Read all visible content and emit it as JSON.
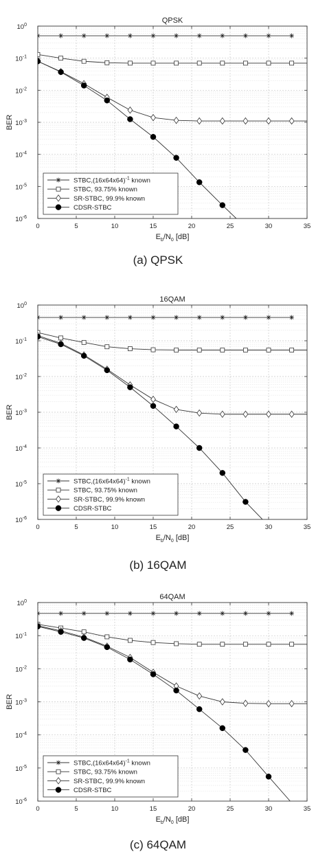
{
  "chart_data": [
    {
      "type": "line",
      "title": "QPSK",
      "caption": "(a) QPSK",
      "xlabel_main": "E",
      "xlabel_sub1": "b",
      "xlabel_mid": "/N",
      "xlabel_sub2": "0",
      "xlabel_unit": " [dB]",
      "ylabel": "BER",
      "xlim": [
        0,
        35
      ],
      "ylim_log10": [
        -6,
        0
      ],
      "y_scale": "log",
      "grid": true,
      "legend_position": "bottom-left",
      "x_ticks": [
        "0",
        "5",
        "10",
        "15",
        "20",
        "25",
        "30",
        "35"
      ],
      "y_tick_base": "10",
      "y_tick_exponents": [
        "0",
        "-1",
        "-2",
        "-3",
        "-4",
        "-5",
        "-6"
      ],
      "series": [
        {
          "name_pre": "STBC,(16x64x64)",
          "name_sup": "-1",
          "name_post": " known",
          "marker": "star",
          "x": [
            0,
            3,
            6,
            9,
            12,
            15,
            18,
            21,
            24,
            27,
            30,
            33
          ],
          "y": [
            0.5,
            0.5,
            0.5,
            0.5,
            0.5,
            0.5,
            0.5,
            0.5,
            0.5,
            0.5,
            0.5,
            0.5
          ]
        },
        {
          "name_pre": "STBC, 93.75% known",
          "marker": "square",
          "x": [
            0,
            3,
            6,
            9,
            12,
            15,
            18,
            21,
            24,
            27,
            30,
            33,
            35
          ],
          "y": [
            0.13,
            0.1,
            0.08,
            0.072,
            0.07,
            0.07,
            0.07,
            0.07,
            0.07,
            0.07,
            0.07,
            0.07,
            0.07
          ]
        },
        {
          "name_pre": "SR-STBC, 99.9% known",
          "marker": "diamond",
          "x": [
            0,
            3,
            6,
            9,
            12,
            15,
            18,
            21,
            24,
            27,
            30,
            33,
            35
          ],
          "y": [
            0.08,
            0.038,
            0.016,
            0.006,
            0.0024,
            0.0014,
            0.00115,
            0.0011,
            0.0011,
            0.0011,
            0.0011,
            0.0011,
            0.0011
          ]
        },
        {
          "name_pre": "CDSR-STBC",
          "marker": "circle",
          "x": [
            0,
            3,
            6,
            9,
            12,
            15,
            18,
            21,
            24,
            25.8
          ],
          "y": [
            0.08,
            0.037,
            0.014,
            0.0048,
            0.00125,
            0.00035,
            7.8e-05,
            1.35e-05,
            2.6e-06,
            1e-06
          ]
        }
      ]
    },
    {
      "type": "line",
      "title": "16QAM",
      "caption": "(b) 16QAM",
      "xlabel_main": "E",
      "xlabel_sub1": "b",
      "xlabel_mid": "/N",
      "xlabel_sub2": "0",
      "xlabel_unit": " [dB]",
      "ylabel": "BER",
      "xlim": [
        0,
        35
      ],
      "ylim_log10": [
        -6,
        0
      ],
      "y_scale": "log",
      "grid": true,
      "legend_position": "bottom-left",
      "x_ticks": [
        "0",
        "5",
        "10",
        "15",
        "20",
        "25",
        "30",
        "35"
      ],
      "y_tick_base": "10",
      "y_tick_exponents": [
        "0",
        "-1",
        "-2",
        "-3",
        "-4",
        "-5",
        "-6"
      ],
      "series": [
        {
          "name_pre": "STBC,(16x64x64)",
          "name_sup": "-1",
          "name_post": " known",
          "marker": "star",
          "x": [
            0,
            3,
            6,
            9,
            12,
            15,
            18,
            21,
            24,
            27,
            30,
            33
          ],
          "y": [
            0.45,
            0.45,
            0.45,
            0.45,
            0.45,
            0.45,
            0.45,
            0.45,
            0.45,
            0.45,
            0.45,
            0.45
          ]
        },
        {
          "name_pre": "STBC, 93.75% known",
          "marker": "square",
          "x": [
            0,
            3,
            6,
            9,
            12,
            15,
            18,
            21,
            24,
            27,
            30,
            33,
            35
          ],
          "y": [
            0.17,
            0.12,
            0.09,
            0.068,
            0.06,
            0.056,
            0.055,
            0.055,
            0.055,
            0.055,
            0.055,
            0.055,
            0.055
          ]
        },
        {
          "name_pre": "SR-STBC, 99.9% known",
          "marker": "diamond",
          "x": [
            0,
            3,
            6,
            9,
            12,
            15,
            18,
            21,
            24,
            27,
            30,
            33,
            35
          ],
          "y": [
            0.14,
            0.085,
            0.04,
            0.016,
            0.0058,
            0.0023,
            0.0012,
            0.00095,
            0.00088,
            0.00088,
            0.00088,
            0.00088,
            0.00088
          ]
        },
        {
          "name_pre": "CDSR-STBC",
          "marker": "circle",
          "x": [
            0,
            3,
            6,
            9,
            12,
            15,
            18,
            21,
            24,
            27,
            29.2
          ],
          "y": [
            0.13,
            0.08,
            0.038,
            0.015,
            0.005,
            0.0015,
            0.0004,
            0.0001,
            2e-05,
            3.1e-06,
            1e-06
          ]
        }
      ]
    },
    {
      "type": "line",
      "title": "64QAM",
      "caption": "(c) 64QAM",
      "xlabel_main": "E",
      "xlabel_sub1": "b",
      "xlabel_mid": "/N",
      "xlabel_sub2": "0",
      "xlabel_unit": " [dB]",
      "ylabel": "BER",
      "xlim": [
        0,
        35
      ],
      "ylim_log10": [
        -6,
        0
      ],
      "y_scale": "log",
      "grid": true,
      "legend_position": "bottom-left",
      "x_ticks": [
        "0",
        "5",
        "10",
        "15",
        "20",
        "25",
        "30",
        "35"
      ],
      "y_tick_base": "10",
      "y_tick_exponents": [
        "0",
        "-1",
        "-2",
        "-3",
        "-4",
        "-5",
        "-6"
      ],
      "series": [
        {
          "name_pre": "STBC,(16x64x64)",
          "name_sup": "-1",
          "name_post": " known",
          "marker": "star",
          "x": [
            0,
            3,
            6,
            9,
            12,
            15,
            18,
            21,
            24,
            27,
            30,
            33
          ],
          "y": [
            0.47,
            0.47,
            0.47,
            0.47,
            0.47,
            0.47,
            0.47,
            0.47,
            0.47,
            0.47,
            0.47,
            0.47
          ]
        },
        {
          "name_pre": "STBC, 93.75% known",
          "marker": "square",
          "x": [
            0,
            3,
            6,
            9,
            12,
            15,
            18,
            21,
            24,
            27,
            30,
            33,
            35
          ],
          "y": [
            0.22,
            0.17,
            0.13,
            0.092,
            0.072,
            0.062,
            0.057,
            0.055,
            0.055,
            0.055,
            0.055,
            0.055,
            0.055
          ]
        },
        {
          "name_pre": "SR-STBC, 99.9% known",
          "marker": "diamond",
          "x": [
            0,
            3,
            6,
            9,
            12,
            15,
            18,
            21,
            24,
            27,
            30,
            33,
            35
          ],
          "y": [
            0.2,
            0.14,
            0.09,
            0.048,
            0.022,
            0.0078,
            0.003,
            0.0015,
            0.001,
            0.0009,
            0.00088,
            0.00088,
            0.00088
          ]
        },
        {
          "name_pre": "CDSR-STBC",
          "marker": "circle",
          "x": [
            0,
            3,
            6,
            9,
            12,
            15,
            18,
            21,
            24,
            27,
            30,
            32.8
          ],
          "y": [
            0.19,
            0.13,
            0.085,
            0.045,
            0.019,
            0.0068,
            0.0022,
            0.0006,
            0.00016,
            3.5e-05,
            5.5e-06,
            1e-06
          ]
        }
      ]
    }
  ]
}
